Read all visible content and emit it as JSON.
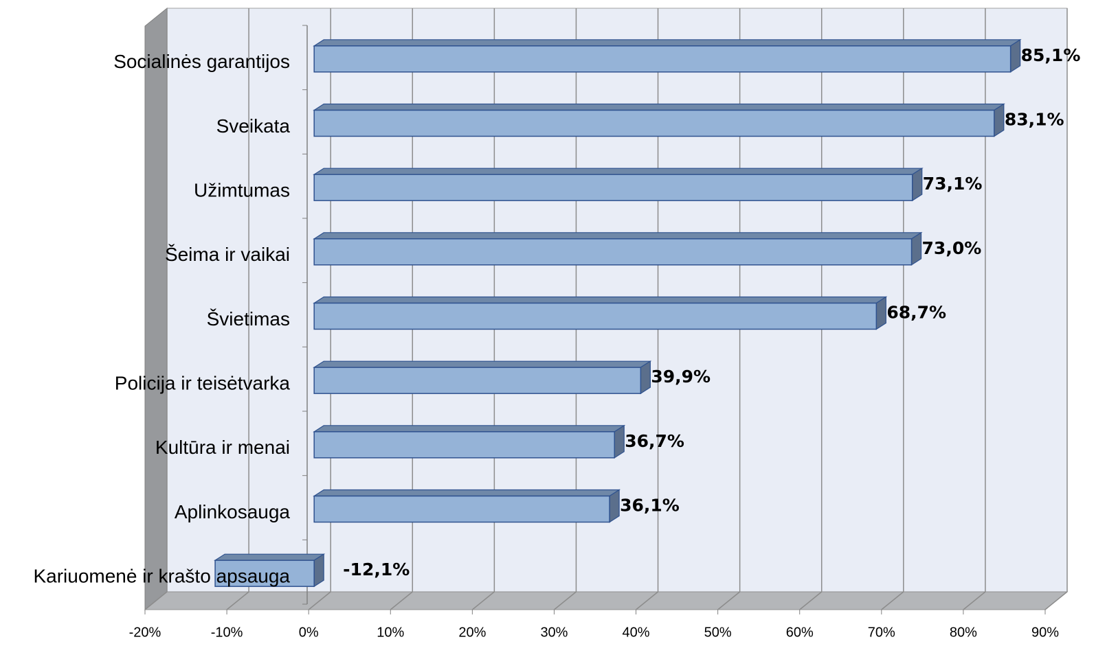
{
  "chart_data": {
    "type": "bar",
    "orientation": "horizontal",
    "categories": [
      "Socialinės garantijos",
      "Sveikata",
      "Užimtumas",
      "Šeima ir vaikai",
      "Švietimas",
      "Policija ir teisėtvarka",
      "Kultūra ir menai",
      "Aplinkosauga",
      "Kariuomenė ir krašto apsauga"
    ],
    "values": [
      85.1,
      83.1,
      73.1,
      73.0,
      68.7,
      39.9,
      36.7,
      36.1,
      -12.1
    ],
    "value_labels": [
      "85,1%",
      "83,1%",
      "73,1%",
      "73,0%",
      "68,7%",
      "39,9%",
      "36,7%",
      "36,1%",
      "-12,1%"
    ],
    "color": "#95b3d7",
    "xlim": [
      -20,
      90
    ],
    "xticks": [
      {
        "value": -20,
        "label": "-20%"
      },
      {
        "value": -10,
        "label": "-10%"
      },
      {
        "value": 0,
        "label": "0%"
      },
      {
        "value": 10,
        "label": "10%"
      },
      {
        "value": 20,
        "label": "20%"
      },
      {
        "value": 30,
        "label": "30%"
      },
      {
        "value": 40,
        "label": "40%"
      },
      {
        "value": 50,
        "label": "50%"
      },
      {
        "value": 60,
        "label": "60%"
      },
      {
        "value": 70,
        "label": "70%"
      },
      {
        "value": 80,
        "label": "80%"
      },
      {
        "value": 90,
        "label": "90%"
      }
    ],
    "grid": true
  }
}
